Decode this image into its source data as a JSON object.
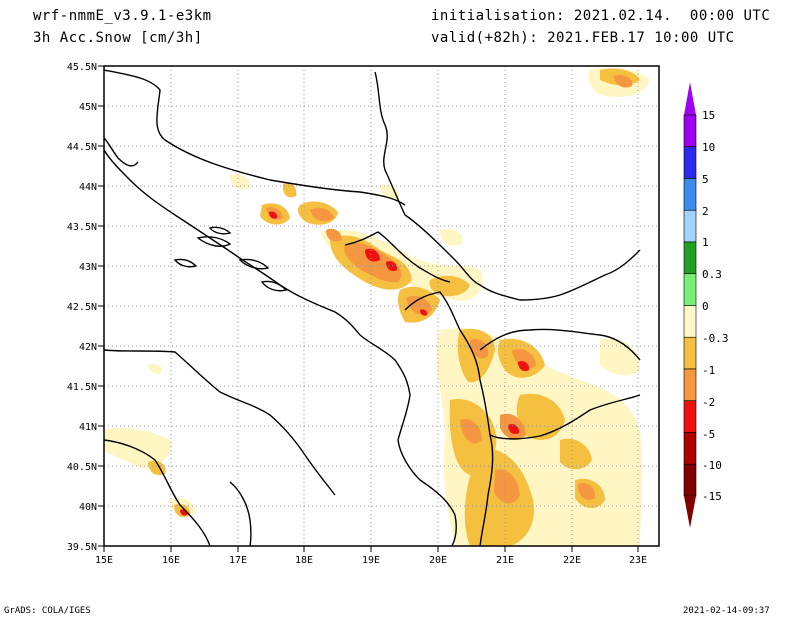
{
  "header": {
    "model": "wrf-nmmE_v3.9.1-e3km",
    "variable": "3h Acc.Snow [cm/3h]",
    "init": "initialisation: 2021.02.14.  00:00 UTC",
    "valid": "valid(+82h): 2021.FEB.17 10:00 UTC"
  },
  "map": {
    "lat_labels": [
      "45.5N",
      "45N",
      "44.5N",
      "44N",
      "43.5N",
      "43N",
      "42.5N",
      "42N",
      "41.5N",
      "41N",
      "40.5N",
      "40N",
      "39.5N"
    ],
    "lon_labels": [
      "15E",
      "16E",
      "17E",
      "18E",
      "19E",
      "20E",
      "21E",
      "22E",
      "23E"
    ],
    "lat_range": [
      39.5,
      45.5
    ],
    "lon_range": [
      15,
      23.3
    ],
    "grid": "dotted"
  },
  "colorbar": {
    "labels": [
      "15",
      "10",
      "5",
      "2",
      "1",
      "0.3",
      "0",
      "-0.3",
      "-1",
      "-2",
      "-5",
      "-10",
      "-15"
    ],
    "colors": [
      "#a000f0",
      "#2a2af0",
      "#3c8cf0",
      "#a0d2fa",
      "#22a022",
      "#78f078",
      "#ffffff",
      "#fff8c8",
      "#f5c040",
      "#f59640",
      "#f01010",
      "#b00000",
      "#800000"
    ],
    "top_arrow_color": "#a000f0",
    "bottom_arrow_color": "#800000"
  },
  "footer": {
    "left": "GrADS: COLA/IGES",
    "right": "2021-02-14-09:37"
  }
}
